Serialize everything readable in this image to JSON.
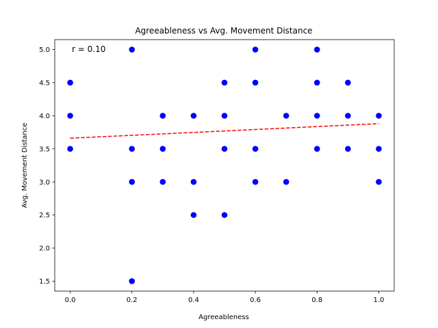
{
  "chart_data": {
    "type": "scatter",
    "title": "Agreeableness vs Avg. Movement Distance",
    "xlabel": "Agreeableness",
    "ylabel": "Avg. Movement Distance",
    "xlim": [
      -0.05,
      1.05
    ],
    "ylim": [
      1.35,
      5.15
    ],
    "xticks": [
      0.0,
      0.2,
      0.4,
      0.6,
      0.8,
      1.0
    ],
    "xtick_labels": [
      "0.0",
      "0.2",
      "0.4",
      "0.6",
      "0.8",
      "1.0"
    ],
    "yticks": [
      1.5,
      2.0,
      2.5,
      3.0,
      3.5,
      4.0,
      4.5,
      5.0
    ],
    "ytick_labels": [
      "1.5",
      "2.0",
      "2.5",
      "3.0",
      "3.5",
      "4.0",
      "4.5",
      "5.0"
    ],
    "grid": false,
    "annotation": "r = 0.10",
    "points": {
      "color": "#0000ff",
      "x": [
        0.0,
        0.0,
        0.0,
        0.2,
        0.2,
        0.2,
        0.2,
        0.3,
        0.3,
        0.3,
        0.4,
        0.4,
        0.4,
        0.5,
        0.5,
        0.5,
        0.5,
        0.6,
        0.6,
        0.6,
        0.6,
        0.7,
        0.7,
        0.8,
        0.8,
        0.8,
        0.8,
        0.9,
        0.9,
        0.9,
        1.0,
        1.0,
        1.0
      ],
      "y": [
        4.5,
        4.0,
        3.5,
        5.0,
        3.5,
        3.0,
        1.5,
        4.0,
        3.5,
        3.0,
        4.0,
        3.0,
        2.5,
        4.5,
        4.0,
        3.5,
        2.5,
        5.0,
        4.5,
        3.5,
        3.0,
        4.0,
        3.0,
        5.0,
        4.5,
        4.0,
        3.5,
        4.5,
        4.0,
        3.5,
        4.0,
        3.5,
        3.0
      ]
    },
    "trendline": {
      "style": "dashed",
      "color": "#ff0000",
      "x": [
        0.0,
        1.0
      ],
      "y": [
        3.66,
        3.88
      ]
    }
  }
}
